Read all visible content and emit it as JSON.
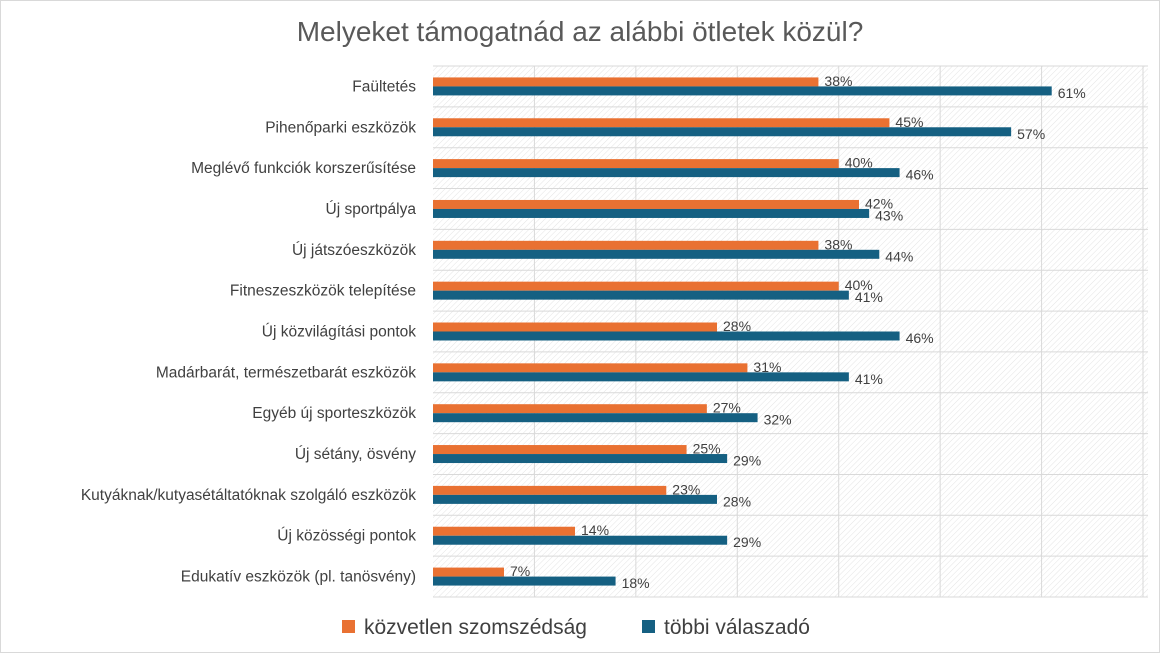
{
  "chart_data": {
    "type": "bar",
    "orientation": "horizontal",
    "title": "Melyeket támogatnád az alábbi ötletek közül?",
    "xlabel": "",
    "ylabel": "",
    "xlim": [
      0,
      70
    ],
    "grid": true,
    "legend_position": "bottom",
    "unit": "%",
    "categories": [
      "Faültetés",
      "Pihenőparki eszközök",
      "Meglévő funkciók korszerűsítése",
      "Új sportpálya",
      "Új játszóeszközök",
      "Fitneszeszközök telepítése",
      "Új közvilágítási pontok",
      "Madárbarát, természetbarát eszközök",
      "Egyéb új sporteszközök",
      "Új sétány, ösvény",
      "Kutyáknak/kutyasétáltatóknak szolgáló eszközök",
      "Új közösségi pontok",
      "Edukatív eszközök (pl. tanösvény)"
    ],
    "series": [
      {
        "name": "közvetlen szomszédság",
        "color": "#E97132",
        "values": [
          38,
          45,
          40,
          42,
          38,
          40,
          28,
          31,
          27,
          25,
          23,
          14,
          7
        ]
      },
      {
        "name": "többi válaszadó",
        "color": "#156082",
        "values": [
          61,
          57,
          46,
          43,
          44,
          41,
          46,
          41,
          32,
          29,
          28,
          29,
          18
        ]
      }
    ]
  }
}
